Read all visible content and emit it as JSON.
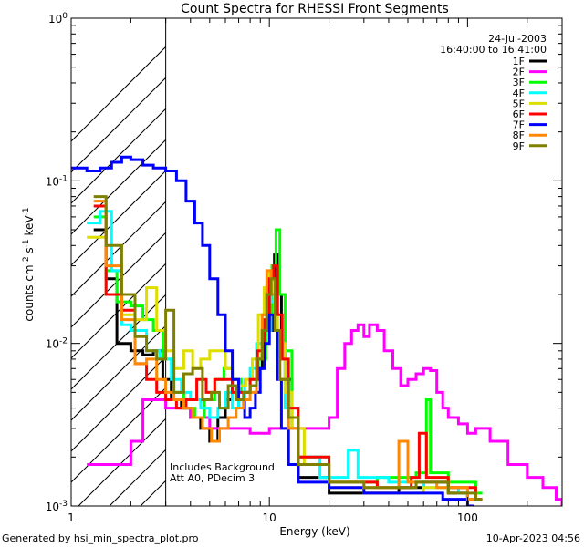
{
  "chart_data": {
    "type": "line",
    "title": "Count Spectra for RHESSI Front Segments",
    "xlabel": "Energy (keV)",
    "ylabel_parts": [
      "counts cm",
      "-2",
      " s",
      "-1",
      " keV",
      "-1"
    ],
    "xscale": "log",
    "yscale": "log",
    "xlim": [
      1,
      300
    ],
    "ylim": [
      0.001,
      1
    ],
    "x_ticks": [
      {
        "value": 1,
        "label": "1"
      },
      {
        "value": 10,
        "label": "10"
      },
      {
        "value": 100,
        "label": "100"
      }
    ],
    "y_ticks": [
      {
        "value": 1,
        "base": "10",
        "exp": "0"
      },
      {
        "value": 0.1,
        "base": "10",
        "exp": "-1"
      },
      {
        "value": 0.01,
        "base": "10",
        "exp": "-2"
      },
      {
        "value": 0.001,
        "base": "10",
        "exp": "-3"
      }
    ],
    "hatched_region": [
      1,
      3
    ],
    "date": "24-Jul-2003",
    "time_range": "16:40:00 to 16:41:00",
    "annotations": [
      "Includes Background",
      "Att A0, PDecim 3"
    ],
    "series": [
      {
        "name": "1F",
        "color": "#000000",
        "steps": [
          [
            1.3,
            0.05
          ],
          [
            1.5,
            0.025
          ],
          [
            1.7,
            0.01
          ],
          [
            2.0,
            0.009
          ],
          [
            2.3,
            0.0085
          ],
          [
            2.6,
            0.009
          ],
          [
            2.9,
            0.006
          ],
          [
            3.2,
            0.0045
          ],
          [
            3.6,
            0.004
          ],
          [
            4.0,
            0.0035
          ],
          [
            4.5,
            0.003
          ],
          [
            5.0,
            0.0025
          ],
          [
            5.5,
            0.0035
          ],
          [
            6.0,
            0.0045
          ],
          [
            6.5,
            0.006
          ],
          [
            7.0,
            0.0045
          ],
          [
            7.5,
            0.005
          ],
          [
            8.0,
            0.0055
          ],
          [
            8.6,
            0.007
          ],
          [
            9.2,
            0.012
          ],
          [
            9.7,
            0.02
          ],
          [
            10.2,
            0.025
          ],
          [
            10.6,
            0.035
          ],
          [
            11.0,
            0.02
          ],
          [
            11.5,
            0.01
          ],
          [
            12.0,
            0.006
          ],
          [
            13.0,
            0.003
          ],
          [
            14.0,
            0.0015
          ],
          [
            20.0,
            0.0012
          ],
          [
            30.0,
            0.0012
          ],
          [
            45.0,
            0.0013
          ],
          [
            60.0,
            0.0014
          ],
          [
            80.0,
            0.0012
          ],
          [
            100.0,
            0.0011
          ]
        ]
      },
      {
        "name": "2F",
        "color": "#ff00ff",
        "steps": [
          [
            1.2,
            0.0018
          ],
          [
            1.5,
            0.0018
          ],
          [
            2.0,
            0.0025
          ],
          [
            2.3,
            0.0045
          ],
          [
            2.6,
            0.0045
          ],
          [
            3.0,
            0.004
          ],
          [
            4.0,
            0.0035
          ],
          [
            5.0,
            0.003
          ],
          [
            8.0,
            0.0028
          ],
          [
            10.0,
            0.003
          ],
          [
            15.0,
            0.003
          ],
          [
            20.0,
            0.0035
          ],
          [
            22.0,
            0.007
          ],
          [
            24.0,
            0.01
          ],
          [
            26.0,
            0.012
          ],
          [
            28.0,
            0.013
          ],
          [
            30.0,
            0.011
          ],
          [
            32.0,
            0.013
          ],
          [
            35.0,
            0.012
          ],
          [
            38.0,
            0.009
          ],
          [
            42.0,
            0.007
          ],
          [
            46.0,
            0.0055
          ],
          [
            50.0,
            0.006
          ],
          [
            55.0,
            0.0065
          ],
          [
            60.0,
            0.007
          ],
          [
            65.0,
            0.0068
          ],
          [
            70.0,
            0.005
          ],
          [
            75.0,
            0.004
          ],
          [
            80.0,
            0.0035
          ],
          [
            90.0,
            0.0032
          ],
          [
            100.0,
            0.0028
          ],
          [
            110.0,
            0.003
          ],
          [
            130.0,
            0.0025
          ],
          [
            160.0,
            0.0018
          ],
          [
            200.0,
            0.0015
          ],
          [
            240.0,
            0.0013
          ],
          [
            280.0,
            0.0011
          ],
          [
            300.0,
            0.001
          ]
        ]
      },
      {
        "name": "3F",
        "color": "#00ff00",
        "steps": [
          [
            1.3,
            0.06
          ],
          [
            1.5,
            0.028
          ],
          [
            1.7,
            0.018
          ],
          [
            2.0,
            0.017
          ],
          [
            2.3,
            0.014
          ],
          [
            2.6,
            0.012
          ],
          [
            2.9,
            0.008
          ],
          [
            3.3,
            0.005
          ],
          [
            3.7,
            0.004
          ],
          [
            4.2,
            0.0035
          ],
          [
            4.7,
            0.0045
          ],
          [
            5.3,
            0.006
          ],
          [
            5.9,
            0.007
          ],
          [
            6.5,
            0.006
          ],
          [
            7.2,
            0.005
          ],
          [
            8.0,
            0.006
          ],
          [
            8.8,
            0.008
          ],
          [
            9.6,
            0.012
          ],
          [
            10.3,
            0.03
          ],
          [
            10.8,
            0.05
          ],
          [
            11.3,
            0.02
          ],
          [
            12.0,
            0.009
          ],
          [
            13.0,
            0.004
          ],
          [
            14.0,
            0.002
          ],
          [
            20.0,
            0.0014
          ],
          [
            35.0,
            0.0015
          ],
          [
            55.0,
            0.0016
          ],
          [
            62.0,
            0.0045
          ],
          [
            65.0,
            0.0016
          ],
          [
            80.0,
            0.0014
          ],
          [
            110.0,
            0.0012
          ]
        ]
      },
      {
        "name": "4F",
        "color": "#00ffff",
        "steps": [
          [
            1.2,
            0.055
          ],
          [
            1.4,
            0.065
          ],
          [
            1.6,
            0.028
          ],
          [
            1.8,
            0.013
          ],
          [
            2.0,
            0.012
          ],
          [
            2.4,
            0.009
          ],
          [
            2.8,
            0.008
          ],
          [
            3.2,
            0.006
          ],
          [
            3.6,
            0.005
          ],
          [
            4.0,
            0.0045
          ],
          [
            4.5,
            0.004
          ],
          [
            5.0,
            0.0035
          ],
          [
            5.5,
            0.004
          ],
          [
            6.0,
            0.005
          ],
          [
            6.5,
            0.004
          ],
          [
            7.0,
            0.0045
          ],
          [
            7.5,
            0.006
          ],
          [
            8.0,
            0.007
          ],
          [
            8.6,
            0.01
          ],
          [
            9.2,
            0.015
          ],
          [
            9.7,
            0.022
          ],
          [
            10.2,
            0.018
          ],
          [
            10.6,
            0.012
          ],
          [
            11.0,
            0.008
          ],
          [
            12.0,
            0.004
          ],
          [
            14.0,
            0.002
          ],
          [
            18.0,
            0.0015
          ],
          [
            25.0,
            0.0022
          ],
          [
            28.0,
            0.0015
          ],
          [
            40.0,
            0.0014
          ],
          [
            60.0,
            0.0013
          ],
          [
            90.0,
            0.0012
          ]
        ]
      },
      {
        "name": "5F",
        "color": "#dddd00",
        "steps": [
          [
            1.2,
            0.045
          ],
          [
            1.5,
            0.02
          ],
          [
            1.8,
            0.015
          ],
          [
            2.1,
            0.014
          ],
          [
            2.4,
            0.022
          ],
          [
            2.7,
            0.012
          ],
          [
            3.0,
            0.009
          ],
          [
            3.3,
            0.007
          ],
          [
            3.7,
            0.009
          ],
          [
            4.1,
            0.007
          ],
          [
            4.5,
            0.008
          ],
          [
            5.0,
            0.009
          ],
          [
            5.5,
            0.009
          ],
          [
            6.0,
            0.007
          ],
          [
            6.5,
            0.006
          ],
          [
            7.0,
            0.0055
          ],
          [
            7.6,
            0.006
          ],
          [
            8.2,
            0.008
          ],
          [
            8.8,
            0.015
          ],
          [
            9.4,
            0.022
          ],
          [
            10.0,
            0.027
          ],
          [
            10.5,
            0.02
          ],
          [
            11.0,
            0.01
          ],
          [
            12.0,
            0.005
          ],
          [
            13.0,
            0.003
          ],
          [
            15.0,
            0.0018
          ],
          [
            20.0,
            0.0013
          ],
          [
            30.0,
            0.0012
          ],
          [
            60.0,
            0.0013
          ],
          [
            100.0,
            0.0011
          ]
        ]
      },
      {
        "name": "6F",
        "color": "#ff0000",
        "steps": [
          [
            1.3,
            0.07
          ],
          [
            1.5,
            0.02
          ],
          [
            1.8,
            0.016
          ],
          [
            2.1,
            0.0075
          ],
          [
            2.4,
            0.006
          ],
          [
            2.7,
            0.005
          ],
          [
            3.0,
            0.0045
          ],
          [
            3.4,
            0.004
          ],
          [
            3.8,
            0.0045
          ],
          [
            4.3,
            0.006
          ],
          [
            4.8,
            0.005
          ],
          [
            5.3,
            0.006
          ],
          [
            5.9,
            0.006
          ],
          [
            6.5,
            0.005
          ],
          [
            7.2,
            0.005
          ],
          [
            8.0,
            0.006
          ],
          [
            8.7,
            0.009
          ],
          [
            9.4,
            0.014
          ],
          [
            10.0,
            0.025
          ],
          [
            10.5,
            0.03
          ],
          [
            11.0,
            0.015
          ],
          [
            11.6,
            0.008
          ],
          [
            12.5,
            0.004
          ],
          [
            14.0,
            0.002
          ],
          [
            20.0,
            0.0014
          ],
          [
            35.0,
            0.0013
          ],
          [
            52.0,
            0.0015
          ],
          [
            57.0,
            0.0028
          ],
          [
            62.0,
            0.0015
          ],
          [
            80.0,
            0.0013
          ],
          [
            110.0,
            0.0011
          ]
        ]
      },
      {
        "name": "7F",
        "color": "#0000ff",
        "steps": [
          [
            1.0,
            0.12
          ],
          [
            1.2,
            0.115
          ],
          [
            1.4,
            0.12
          ],
          [
            1.6,
            0.13
          ],
          [
            1.8,
            0.14
          ],
          [
            2.0,
            0.135
          ],
          [
            2.3,
            0.125
          ],
          [
            2.6,
            0.12
          ],
          [
            3.0,
            0.115
          ],
          [
            3.4,
            0.1
          ],
          [
            3.8,
            0.075
          ],
          [
            4.2,
            0.055
          ],
          [
            4.6,
            0.04
          ],
          [
            5.0,
            0.025
          ],
          [
            5.5,
            0.015
          ],
          [
            6.0,
            0.009
          ],
          [
            6.5,
            0.006
          ],
          [
            7.0,
            0.0045
          ],
          [
            7.5,
            0.0035
          ],
          [
            8.0,
            0.004
          ],
          [
            8.5,
            0.005
          ],
          [
            9.0,
            0.007
          ],
          [
            9.5,
            0.01
          ],
          [
            10.0,
            0.015
          ],
          [
            10.5,
            0.012
          ],
          [
            11.0,
            0.006
          ],
          [
            11.5,
            0.003
          ],
          [
            12.5,
            0.0018
          ],
          [
            14.0,
            0.0014
          ],
          [
            20.0,
            0.0013
          ],
          [
            30.0,
            0.0012
          ],
          [
            50.0,
            0.0012
          ],
          [
            75.0,
            0.0011
          ],
          [
            100.0,
            0.001
          ]
        ]
      },
      {
        "name": "8F",
        "color": "#ff8800",
        "steps": [
          [
            1.3,
            0.075
          ],
          [
            1.5,
            0.03
          ],
          [
            1.8,
            0.014
          ],
          [
            2.1,
            0.0075
          ],
          [
            2.4,
            0.008
          ],
          [
            2.7,
            0.006
          ],
          [
            3.0,
            0.005
          ],
          [
            3.3,
            0.0045
          ],
          [
            3.7,
            0.004
          ],
          [
            4.1,
            0.0035
          ],
          [
            4.6,
            0.003
          ],
          [
            5.1,
            0.0025
          ],
          [
            5.6,
            0.003
          ],
          [
            6.2,
            0.0035
          ],
          [
            6.8,
            0.004
          ],
          [
            7.4,
            0.0045
          ],
          [
            8.0,
            0.005
          ],
          [
            8.6,
            0.008
          ],
          [
            9.2,
            0.015
          ],
          [
            9.7,
            0.028
          ],
          [
            10.2,
            0.02
          ],
          [
            10.7,
            0.012
          ],
          [
            11.3,
            0.006
          ],
          [
            12.5,
            0.003
          ],
          [
            14.0,
            0.0018
          ],
          [
            20.0,
            0.0014
          ],
          [
            30.0,
            0.0013
          ],
          [
            45.0,
            0.0025
          ],
          [
            50.0,
            0.0014
          ],
          [
            70.0,
            0.0013
          ],
          [
            100.0,
            0.0011
          ]
        ]
      },
      {
        "name": "9F",
        "color": "#808000",
        "steps": [
          [
            1.3,
            0.08
          ],
          [
            1.5,
            0.04
          ],
          [
            1.8,
            0.02
          ],
          [
            2.1,
            0.011
          ],
          [
            2.4,
            0.009
          ],
          [
            2.7,
            0.008
          ],
          [
            3.0,
            0.016
          ],
          [
            3.3,
            0.005
          ],
          [
            3.7,
            0.0065
          ],
          [
            4.1,
            0.007
          ],
          [
            4.6,
            0.0045
          ],
          [
            5.1,
            0.005
          ],
          [
            5.6,
            0.004
          ],
          [
            6.2,
            0.0055
          ],
          [
            6.8,
            0.0045
          ],
          [
            7.4,
            0.005
          ],
          [
            8.0,
            0.0055
          ],
          [
            8.6,
            0.008
          ],
          [
            9.2,
            0.012
          ],
          [
            9.7,
            0.02
          ],
          [
            10.2,
            0.025
          ],
          [
            10.7,
            0.012
          ],
          [
            11.3,
            0.006
          ],
          [
            12.5,
            0.0035
          ],
          [
            14.0,
            0.0018
          ],
          [
            20.0,
            0.0014
          ],
          [
            30.0,
            0.0013
          ],
          [
            55.0,
            0.0014
          ],
          [
            80.0,
            0.0012
          ],
          [
            110.0,
            0.0011
          ]
        ]
      }
    ]
  },
  "footer": {
    "generated_by": "Generated by hsi_min_spectra_plot.pro",
    "timestamp": "10-Apr-2023 04:56"
  }
}
